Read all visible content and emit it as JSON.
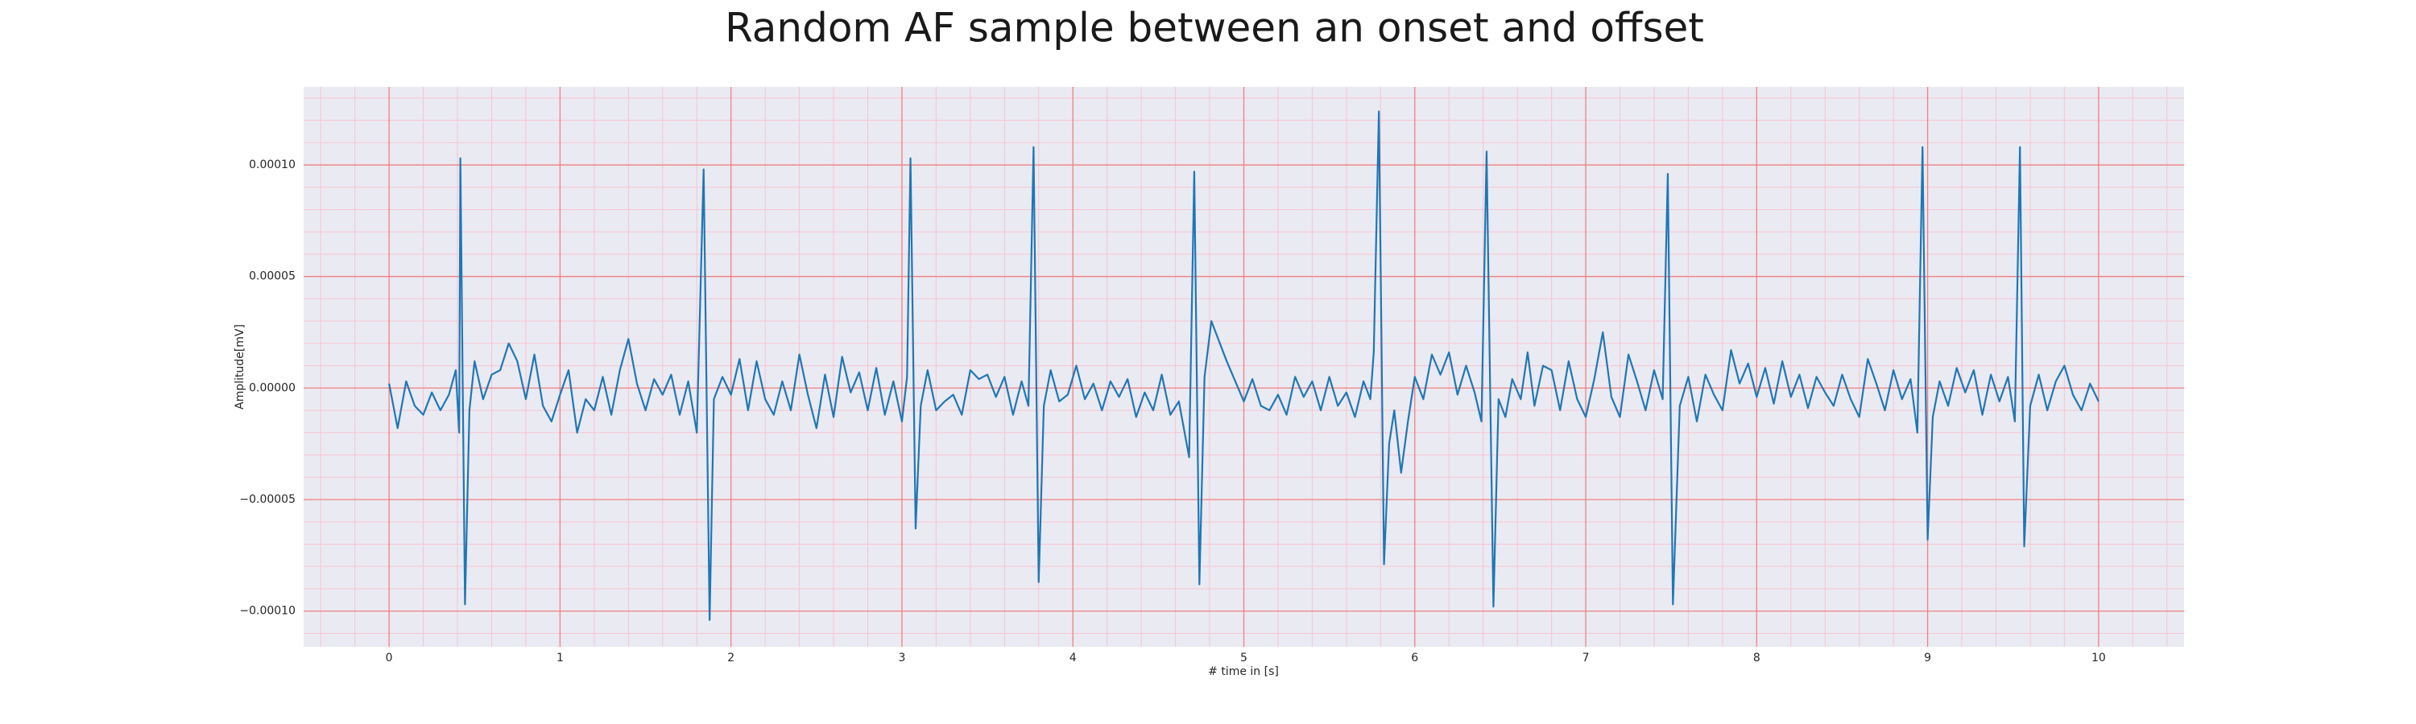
{
  "chart_data": {
    "type": "line",
    "title": "Random AF sample between an onset and offset",
    "xlabel": "# time in [s]",
    "ylabel": "Amplitude[mV]",
    "xlim": [
      -0.5,
      10.5
    ],
    "ylim": [
      -0.000116,
      0.000135
    ],
    "xticks": [
      0,
      1,
      2,
      3,
      4,
      5,
      6,
      7,
      8,
      9,
      10
    ],
    "yticks": [
      {
        "value": -0.0001,
        "label": "−0.00010"
      },
      {
        "value": -5e-05,
        "label": "−0.00005"
      },
      {
        "value": 0,
        "label": "0.00000"
      },
      {
        "value": 5e-05,
        "label": "0.00005"
      },
      {
        "value": 0.0001,
        "label": "0.00010"
      }
    ],
    "grid": true,
    "minor_grid": true,
    "grid_color": "#f08080",
    "minor_grid_color": "#f7c4cf",
    "background": "#eaeaf2",
    "color": "#1f77b4",
    "x": [
      0.0,
      0.05,
      0.1,
      0.15,
      0.2,
      0.25,
      0.3,
      0.35,
      0.39,
      0.41,
      0.417,
      0.444,
      0.47,
      0.5,
      0.55,
      0.6,
      0.65,
      0.7,
      0.75,
      0.8,
      0.85,
      0.9,
      0.95,
      1.0,
      1.05,
      1.1,
      1.15,
      1.2,
      1.25,
      1.3,
      1.35,
      1.4,
      1.45,
      1.5,
      1.55,
      1.6,
      1.65,
      1.7,
      1.75,
      1.8,
      1.84,
      1.875,
      1.9,
      1.95,
      2.0,
      2.05,
      2.1,
      2.15,
      2.2,
      2.25,
      2.3,
      2.35,
      2.4,
      2.45,
      2.5,
      2.55,
      2.6,
      2.65,
      2.7,
      2.75,
      2.8,
      2.85,
      2.9,
      2.95,
      3.0,
      3.03,
      3.05,
      3.08,
      3.11,
      3.15,
      3.2,
      3.25,
      3.3,
      3.35,
      3.4,
      3.45,
      3.5,
      3.55,
      3.6,
      3.65,
      3.7,
      3.74,
      3.77,
      3.8,
      3.83,
      3.87,
      3.92,
      3.97,
      4.02,
      4.07,
      4.12,
      4.17,
      4.22,
      4.27,
      4.32,
      4.37,
      4.42,
      4.47,
      4.52,
      4.57,
      4.62,
      4.68,
      4.71,
      4.74,
      4.77,
      4.81,
      4.85,
      4.9,
      4.95,
      5.0,
      5.05,
      5.1,
      5.15,
      5.2,
      5.25,
      5.3,
      5.35,
      5.4,
      5.45,
      5.5,
      5.55,
      5.6,
      5.65,
      5.7,
      5.74,
      5.76,
      5.79,
      5.82,
      5.85,
      5.88,
      5.92,
      5.96,
      6.0,
      6.05,
      6.1,
      6.15,
      6.2,
      6.25,
      6.3,
      6.35,
      6.39,
      6.42,
      6.46,
      6.49,
      6.53,
      6.57,
      6.62,
      6.66,
      6.7,
      6.75,
      6.8,
      6.85,
      6.9,
      6.95,
      7.0,
      7.05,
      7.1,
      7.15,
      7.2,
      7.25,
      7.3,
      7.35,
      7.4,
      7.45,
      7.48,
      7.51,
      7.55,
      7.6,
      7.65,
      7.7,
      7.75,
      7.8,
      7.85,
      7.9,
      7.95,
      8.0,
      8.05,
      8.1,
      8.15,
      8.2,
      8.25,
      8.3,
      8.35,
      8.4,
      8.45,
      8.5,
      8.55,
      8.6,
      8.65,
      8.7,
      8.75,
      8.8,
      8.85,
      8.9,
      8.94,
      8.97,
      9.0,
      9.03,
      9.07,
      9.12,
      9.17,
      9.22,
      9.27,
      9.32,
      9.37,
      9.42,
      9.47,
      9.51,
      9.54,
      9.565,
      9.6,
      9.65,
      9.7,
      9.75,
      9.8,
      9.85,
      9.9,
      9.95,
      10.0
    ],
    "values": [
      2e-06,
      -1.8e-05,
      3e-06,
      -8e-06,
      -1.2e-05,
      -2e-06,
      -1e-05,
      -3e-06,
      8e-06,
      -2e-05,
      0.000103,
      -9.7e-05,
      -1e-05,
      1.2e-05,
      -5e-06,
      6e-06,
      8e-06,
      2e-05,
      1.2e-05,
      -5e-06,
      1.5e-05,
      -8e-06,
      -1.5e-05,
      -3e-06,
      8e-06,
      -2e-05,
      -5e-06,
      -1e-05,
      5e-06,
      -1.2e-05,
      8e-06,
      2.2e-05,
      2e-06,
      -1e-05,
      4e-06,
      -3e-06,
      6e-06,
      -1.2e-05,
      3e-06,
      -2e-05,
      9.8e-05,
      -0.000104,
      -5e-06,
      5e-06,
      -3e-06,
      1.3e-05,
      -1e-05,
      1.2e-05,
      -5e-06,
      -1.2e-05,
      3e-06,
      -1e-05,
      1.5e-05,
      -3e-06,
      -1.8e-05,
      6e-06,
      -1.3e-05,
      1.4e-05,
      -2e-06,
      7e-06,
      -1e-05,
      9e-06,
      -1.2e-05,
      3e-06,
      -1.5e-05,
      5e-06,
      0.000103,
      -6.3e-05,
      -8e-06,
      8e-06,
      -1e-05,
      -6e-06,
      -3e-06,
      -1.2e-05,
      8e-06,
      4e-06,
      6e-06,
      -4e-06,
      5e-06,
      -1.2e-05,
      3e-06,
      -8e-06,
      0.000108,
      -8.7e-05,
      -8e-06,
      8e-06,
      -6e-06,
      -3e-06,
      1e-05,
      -5e-06,
      2e-06,
      -1e-05,
      3e-06,
      -4e-06,
      4e-06,
      -1.3e-05,
      -2e-06,
      -1e-05,
      6e-06,
      -1.2e-05,
      -6e-06,
      -3.1e-05,
      9.7e-05,
      -8.8e-05,
      5e-06,
      3e-05,
      2.2e-05,
      1.2e-05,
      3e-06,
      -6e-06,
      4e-06,
      -8e-06,
      -1e-05,
      -3e-06,
      -1.2e-05,
      5e-06,
      -4e-06,
      3e-06,
      -1e-05,
      5e-06,
      -8e-06,
      -2e-06,
      -1.3e-05,
      3e-06,
      -5e-06,
      1.6e-05,
      0.000124,
      -7.9e-05,
      -2.5e-05,
      -1e-05,
      -3.8e-05,
      -1.5e-05,
      5e-06,
      -5e-06,
      1.5e-05,
      6e-06,
      1.6e-05,
      -3e-06,
      1e-05,
      -2e-06,
      -1.5e-05,
      0.000106,
      -9.8e-05,
      -5e-06,
      -1.3e-05,
      4e-06,
      -5e-06,
      1.6e-05,
      -8e-06,
      1e-05,
      8e-06,
      -1e-05,
      1.2e-05,
      -5e-06,
      -1.3e-05,
      4e-06,
      2.5e-05,
      -4e-06,
      -1.3e-05,
      1.5e-05,
      3e-06,
      -1e-05,
      8e-06,
      -5e-06,
      9.6e-05,
      -9.7e-05,
      -8e-06,
      5e-06,
      -1.5e-05,
      6e-06,
      -3e-06,
      -1e-05,
      1.7e-05,
      2e-06,
      1.1e-05,
      -4e-06,
      9e-06,
      -7e-06,
      1.2e-05,
      -4e-06,
      6e-06,
      -9e-06,
      5e-06,
      -2e-06,
      -8e-06,
      6e-06,
      -5e-06,
      -1.3e-05,
      1.3e-05,
      2e-06,
      -1e-05,
      8e-06,
      -5e-06,
      4e-06,
      -2e-05,
      0.000108,
      -6.8e-05,
      -1.3e-05,
      3e-06,
      -8e-06,
      9e-06,
      -2e-06,
      8e-06,
      -1.2e-05,
      6e-06,
      -6e-06,
      5e-06,
      -1.5e-05,
      0.000108,
      -7.1e-05,
      -8e-06,
      6e-06,
      -1e-05,
      3e-06,
      1e-05,
      -3e-06,
      -1e-05,
      2e-06,
      -6e-06
    ]
  }
}
